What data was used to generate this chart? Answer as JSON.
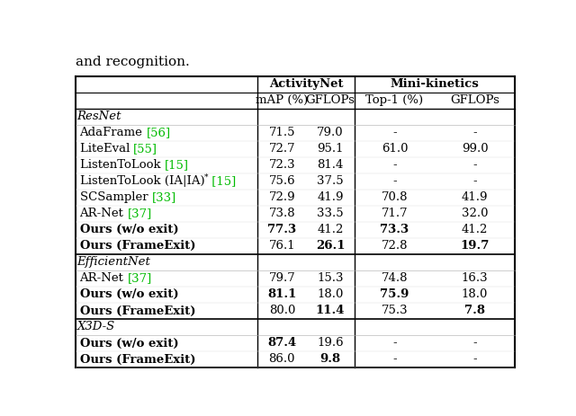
{
  "title_text": "and recognition.",
  "sections": [
    {
      "section_label": "ResNet",
      "italic": true,
      "rows": [
        {
          "method_plain": "AdaFrame ",
          "method_cite": "[56]",
          "superscript": false,
          "vals": [
            "71.5",
            "79.0",
            "-",
            "-"
          ],
          "bold_method": false,
          "bold_vals": [
            false,
            false,
            false,
            false
          ]
        },
        {
          "method_plain": "LiteEval ",
          "method_cite": "[55]",
          "superscript": false,
          "vals": [
            "72.7",
            "95.1",
            "61.0",
            "99.0"
          ],
          "bold_method": false,
          "bold_vals": [
            false,
            false,
            false,
            false
          ]
        },
        {
          "method_plain": "ListenToLook ",
          "method_cite": "[15]",
          "superscript": false,
          "vals": [
            "72.3",
            "81.4",
            "-",
            "-"
          ],
          "bold_method": false,
          "bold_vals": [
            false,
            false,
            false,
            false
          ]
        },
        {
          "method_plain": "ListenToLook (IA|IA)",
          "method_cite": "[15]",
          "superscript": true,
          "vals": [
            "75.6",
            "37.5",
            "-",
            "-"
          ],
          "bold_method": false,
          "bold_vals": [
            false,
            false,
            false,
            false
          ]
        },
        {
          "method_plain": "SCSampler ",
          "method_cite": "[33]",
          "superscript": false,
          "vals": [
            "72.9",
            "41.9",
            "70.8",
            "41.9"
          ],
          "bold_method": false,
          "bold_vals": [
            false,
            false,
            false,
            false
          ]
        },
        {
          "method_plain": "AR-Net ",
          "method_cite": "[37]",
          "superscript": false,
          "vals": [
            "73.8",
            "33.5",
            "71.7",
            "32.0"
          ],
          "bold_method": false,
          "bold_vals": [
            false,
            false,
            false,
            false
          ]
        },
        {
          "method_plain": "Ours (w/o exit)",
          "method_cite": "",
          "superscript": false,
          "vals": [
            "77.3",
            "41.2",
            "73.3",
            "41.2"
          ],
          "bold_method": true,
          "bold_vals": [
            true,
            false,
            true,
            false
          ]
        },
        {
          "method_plain": "Ours (FrameExit)",
          "method_cite": "",
          "superscript": false,
          "vals": [
            "76.1",
            "26.1",
            "72.8",
            "19.7"
          ],
          "bold_method": true,
          "bold_vals": [
            false,
            true,
            false,
            true
          ]
        }
      ]
    },
    {
      "section_label": "EfficientNet",
      "italic": true,
      "rows": [
        {
          "method_plain": "AR-Net ",
          "method_cite": "[37]",
          "superscript": false,
          "vals": [
            "79.7",
            "15.3",
            "74.8",
            "16.3"
          ],
          "bold_method": false,
          "bold_vals": [
            false,
            false,
            false,
            false
          ]
        },
        {
          "method_plain": "Ours (w/o exit)",
          "method_cite": "",
          "superscript": false,
          "vals": [
            "81.1",
            "18.0",
            "75.9",
            "18.0"
          ],
          "bold_method": true,
          "bold_vals": [
            true,
            false,
            true,
            false
          ]
        },
        {
          "method_plain": "Ours (FrameExit)",
          "method_cite": "",
          "superscript": false,
          "vals": [
            "80.0",
            "11.4",
            "75.3",
            "7.8"
          ],
          "bold_method": true,
          "bold_vals": [
            false,
            true,
            false,
            true
          ]
        }
      ]
    },
    {
      "section_label": "X3D-S",
      "italic": true,
      "rows": [
        {
          "method_plain": "Ours (w/o exit)",
          "method_cite": "",
          "superscript": false,
          "vals": [
            "87.4",
            "19.6",
            "-",
            "-"
          ],
          "bold_method": true,
          "bold_vals": [
            true,
            false,
            false,
            false
          ]
        },
        {
          "method_plain": "Ours (FrameExit)",
          "method_cite": "",
          "superscript": false,
          "vals": [
            "86.0",
            "9.8",
            "-",
            "-"
          ],
          "bold_method": true,
          "bold_vals": [
            false,
            true,
            false,
            false
          ]
        }
      ]
    }
  ],
  "green_color": "#00BB00",
  "font_size": 9.5,
  "title_font_size": 11
}
